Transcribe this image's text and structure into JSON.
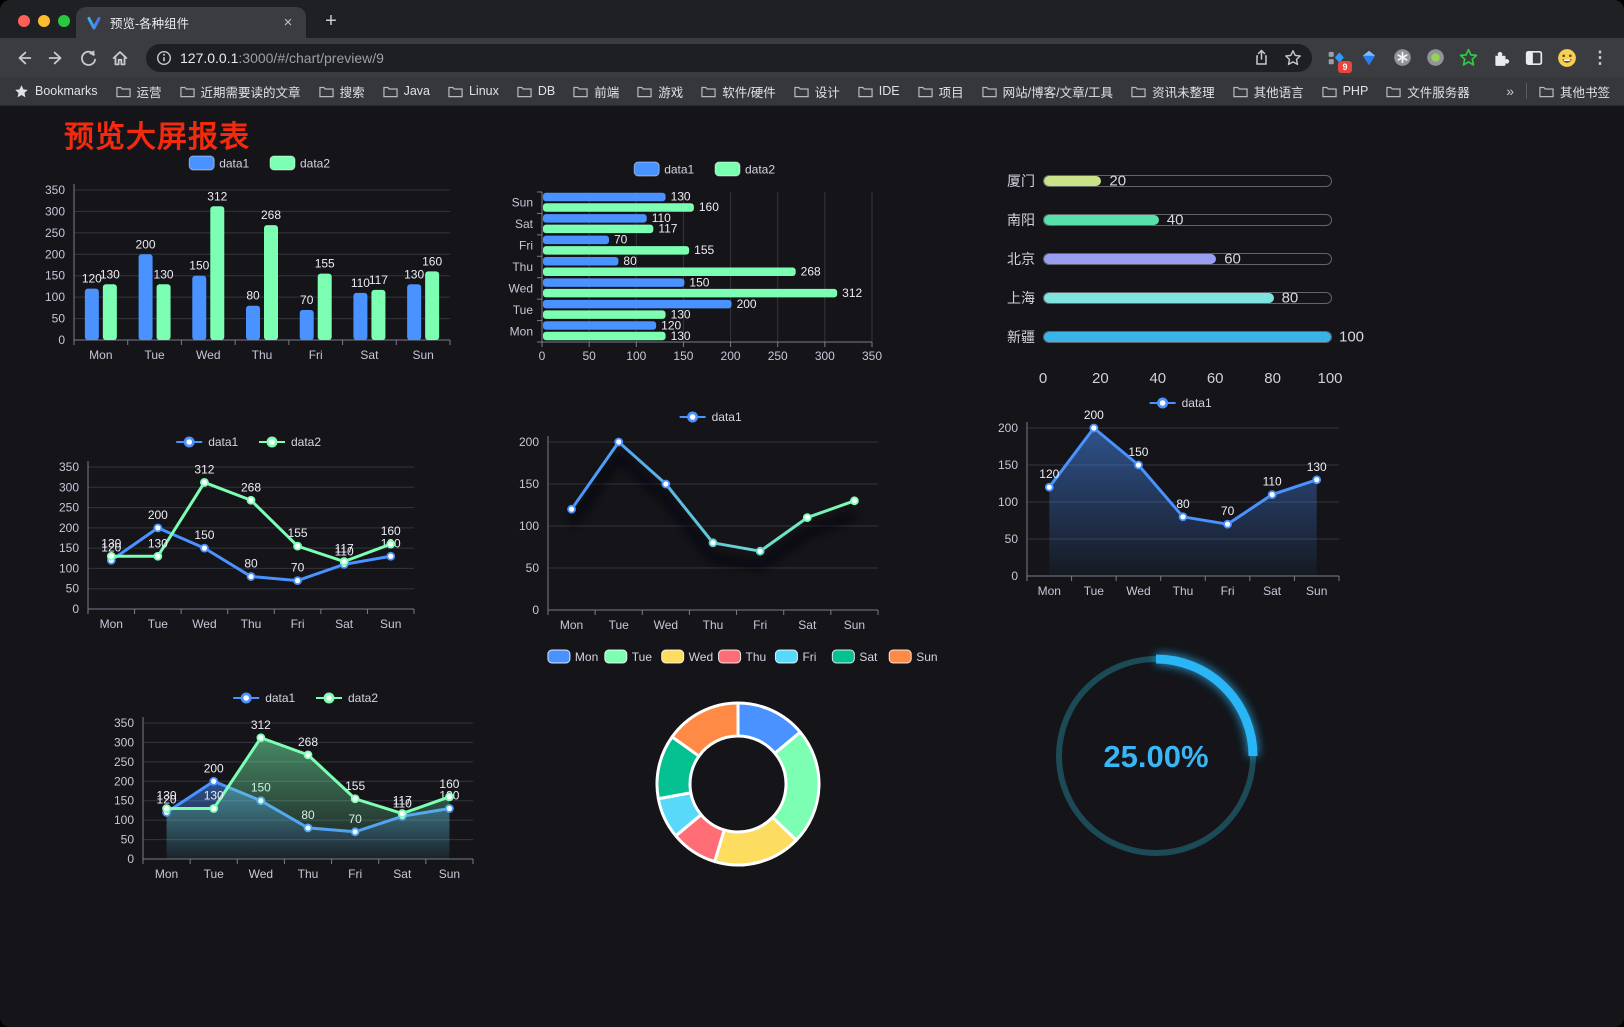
{
  "browser": {
    "tab": {
      "title": "预览-各种组件",
      "close_glyph": "×"
    },
    "new_tab_glyph": "+",
    "url": {
      "host": "127.0.0.1",
      "rest": ":3000/#/chart/preview/9"
    },
    "extension_badge": "9",
    "menu_glyph": "⋮",
    "bookmarks": {
      "root_label": "Bookmarks",
      "folders": [
        "运营",
        "近期需要读的文章",
        "搜索",
        "Java",
        "Linux",
        "DB",
        "前端",
        "游戏",
        "软件/硬件",
        "设计",
        "IDE",
        "项目",
        "网站/博客/文章/工具",
        "资讯未整理",
        "其他语言",
        "PHP",
        "文件服务器"
      ],
      "overflow_glyph": "»",
      "other_label": "其他书签"
    }
  },
  "page": {
    "title": "预览大屏报表",
    "title_color": "#f32a0d",
    "background": "#141419"
  },
  "chart_data": [
    {
      "id": "bar-grouped",
      "type": "bar",
      "legend_position": "top",
      "categories": [
        "Mon",
        "Tue",
        "Wed",
        "Thu",
        "Fri",
        "Sat",
        "Sun"
      ],
      "series": [
        {
          "name": "data1",
          "color": "#4992ff",
          "values": [
            120,
            200,
            150,
            80,
            70,
            110,
            130
          ]
        },
        {
          "name": "data2",
          "color": "#7cffb2",
          "values": [
            130,
            130,
            312,
            268,
            155,
            117,
            160
          ]
        }
      ],
      "ylim": [
        0,
        350
      ],
      "ytick_step": 50,
      "grid": true,
      "data_labels": true
    },
    {
      "id": "hbar-grouped",
      "type": "bar",
      "orientation": "horizontal",
      "legend_position": "top",
      "categories": [
        "Mon",
        "Tue",
        "Wed",
        "Thu",
        "Fri",
        "Sat",
        "Sun"
      ],
      "category_order_on_axis": "Sun at top, Mon at bottom",
      "series": [
        {
          "name": "data1",
          "color": "#4992ff",
          "values": [
            120,
            200,
            150,
            80,
            70,
            110,
            130
          ]
        },
        {
          "name": "data2",
          "color": "#7cffb2",
          "values": [
            130,
            130,
            312,
            268,
            155,
            117,
            160
          ]
        }
      ],
      "xlim": [
        0,
        350
      ],
      "xtick_step": 50,
      "grid": true,
      "data_labels": true
    },
    {
      "id": "progress-bars",
      "type": "bar",
      "orientation": "horizontal",
      "style": "rounded-progress",
      "items": [
        {
          "label": "厦门",
          "value": 20,
          "color": "#cbe388"
        },
        {
          "label": "南阳",
          "value": 40,
          "color": "#58e0ab"
        },
        {
          "label": "北京",
          "value": 60,
          "color": "#9a9ef0"
        },
        {
          "label": "上海",
          "value": 80,
          "color": "#7fe3e0"
        },
        {
          "label": "新疆",
          "value": 100,
          "color": "#3ab4e8"
        }
      ],
      "xlim": [
        0,
        100
      ],
      "xticks": [
        0,
        20,
        40,
        60,
        80,
        100
      ]
    },
    {
      "id": "line-two",
      "type": "line",
      "legend_position": "top",
      "categories": [
        "Mon",
        "Tue",
        "Wed",
        "Thu",
        "Fri",
        "Sat",
        "Sun"
      ],
      "series": [
        {
          "name": "data1",
          "color": "#4992ff",
          "values": [
            120,
            200,
            150,
            80,
            70,
            110,
            130
          ]
        },
        {
          "name": "data2",
          "color": "#7cffb2",
          "values": [
            130,
            130,
            312,
            268,
            155,
            117,
            160
          ]
        }
      ],
      "ylim": [
        0,
        350
      ],
      "ytick_step": 50,
      "grid": true,
      "data_labels": true
    },
    {
      "id": "line-gradient",
      "type": "line",
      "legend_position": "top",
      "categories": [
        "Mon",
        "Tue",
        "Wed",
        "Thu",
        "Fri",
        "Sat",
        "Sun"
      ],
      "series": [
        {
          "name": "data1",
          "color": "#4992ff",
          "values": [
            120,
            200,
            150,
            80,
            70,
            110,
            130
          ]
        }
      ],
      "line_gradient": [
        "#4992ff",
        "#7cffb2"
      ],
      "shadow": true,
      "ylim": [
        0,
        200
      ],
      "ytick_step": 50,
      "grid": true,
      "data_labels": false
    },
    {
      "id": "area-blue",
      "type": "area",
      "legend_position": "top",
      "categories": [
        "Mon",
        "Tue",
        "Wed",
        "Thu",
        "Fri",
        "Sat",
        "Sun"
      ],
      "series": [
        {
          "name": "data1",
          "color": "#4992ff",
          "values": [
            120,
            200,
            150,
            80,
            70,
            110,
            130
          ]
        }
      ],
      "ylim": [
        0,
        200
      ],
      "ytick_step": 50,
      "grid": true,
      "data_labels": true
    },
    {
      "id": "line-area-two",
      "type": "area",
      "legend_position": "top",
      "categories": [
        "Mon",
        "Tue",
        "Wed",
        "Thu",
        "Fri",
        "Sat",
        "Sun"
      ],
      "series": [
        {
          "name": "data1",
          "color": "#4992ff",
          "values": [
            120,
            200,
            150,
            80,
            70,
            110,
            130
          ]
        },
        {
          "name": "data2",
          "color": "#7cffb2",
          "values": [
            130,
            130,
            312,
            268,
            155,
            117,
            160
          ]
        }
      ],
      "ylim": [
        0,
        350
      ],
      "ytick_step": 50,
      "grid": true,
      "data_labels": true
    },
    {
      "id": "donut-week",
      "type": "pie",
      "shape": "donut",
      "legend_position": "top",
      "labels": [
        "Mon",
        "Tue",
        "Wed",
        "Thu",
        "Fri",
        "Sat",
        "Sun"
      ],
      "values": [
        120,
        200,
        150,
        80,
        70,
        110,
        130
      ],
      "colors": [
        "#4992ff",
        "#7cffb2",
        "#fddd60",
        "#ff6e76",
        "#58d9f9",
        "#05c091",
        "#ff8a45"
      ]
    },
    {
      "id": "gauge-progress",
      "type": "gauge",
      "value": 25,
      "max": 100,
      "label": "25.00%",
      "color": "#2ab5f7",
      "track_color": "#1c4a57",
      "label_color": "#38b6f5"
    }
  ]
}
